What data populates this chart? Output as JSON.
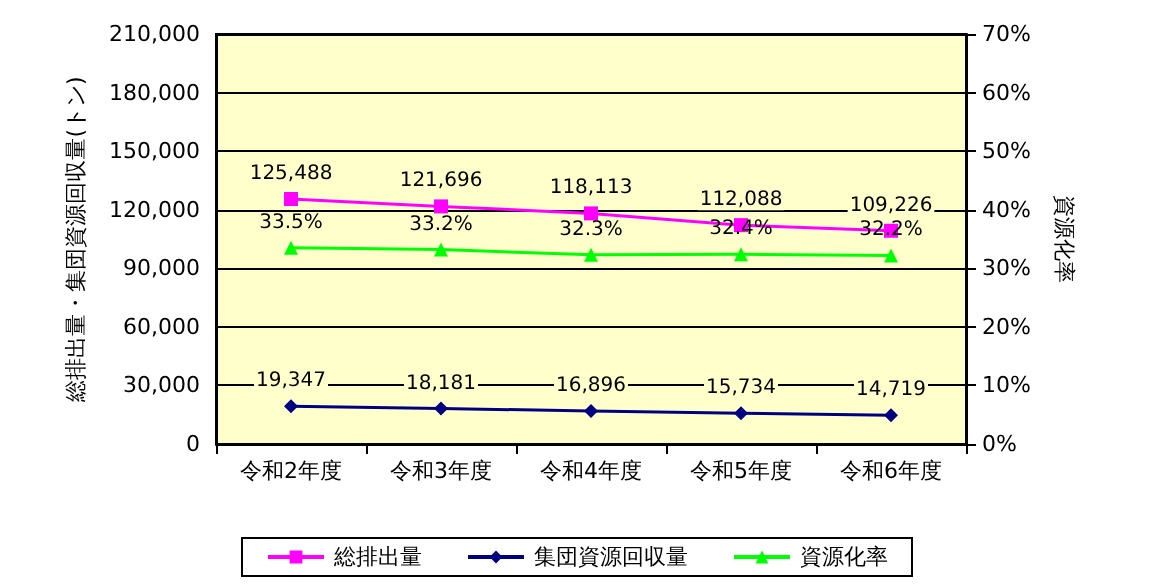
{
  "chart_data": {
    "type": "line",
    "xlabel": null,
    "ylabel": "総排出量・集団資源回収量(トン)",
    "y2label": "資源化率",
    "categories": [
      "令和2年度",
      "令和3年度",
      "令和4年度",
      "令和5年度",
      "令和6年度"
    ],
    "series": [
      {
        "name": "総排出量",
        "color": "#ff00ff",
        "marker": "square",
        "values": [
          125488,
          121696,
          118113,
          112088,
          109226
        ],
        "value_labels": [
          "125,488",
          "121,696",
          "118,113",
          "112,088",
          "109,226"
        ]
      },
      {
        "name": "集団資源回収量",
        "color": "#000080",
        "marker": "diamond",
        "values": [
          19347,
          18181,
          16896,
          15734,
          14719
        ],
        "value_labels": [
          "19,347",
          "18,181",
          "16,896",
          "15,734",
          "14,719"
        ]
      },
      {
        "name": "資源化率",
        "color": "#00ff00",
        "marker": "triangle",
        "axis": "y2",
        "values": [
          33.5,
          33.2,
          32.3,
          32.4,
          32.2
        ],
        "value_labels": [
          "33.5%",
          "33.2%",
          "32.3%",
          "32.4%",
          "32.2%"
        ]
      }
    ],
    "ylim": [
      0,
      210000
    ],
    "yticks": [
      {
        "value": 0,
        "label": "0"
      },
      {
        "value": 30000,
        "label": "30,000"
      },
      {
        "value": 60000,
        "label": "60,000"
      },
      {
        "value": 90000,
        "label": "90,000"
      },
      {
        "value": 120000,
        "label": "120,000"
      },
      {
        "value": 150000,
        "label": "150,000"
      },
      {
        "value": 180000,
        "label": "180,000"
      },
      {
        "value": 210000,
        "label": "210,000"
      }
    ],
    "y2lim": [
      0,
      70
    ],
    "y2ticks": [
      {
        "value": 0,
        "label": "0%"
      },
      {
        "value": 10,
        "label": "10%"
      },
      {
        "value": 20,
        "label": "20%"
      },
      {
        "value": 30,
        "label": "30%"
      },
      {
        "value": 40,
        "label": "40%"
      },
      {
        "value": 50,
        "label": "50%"
      },
      {
        "value": 60,
        "label": "60%"
      },
      {
        "value": 70,
        "label": "70%"
      }
    ],
    "grid": "y",
    "legend": "bottom"
  }
}
